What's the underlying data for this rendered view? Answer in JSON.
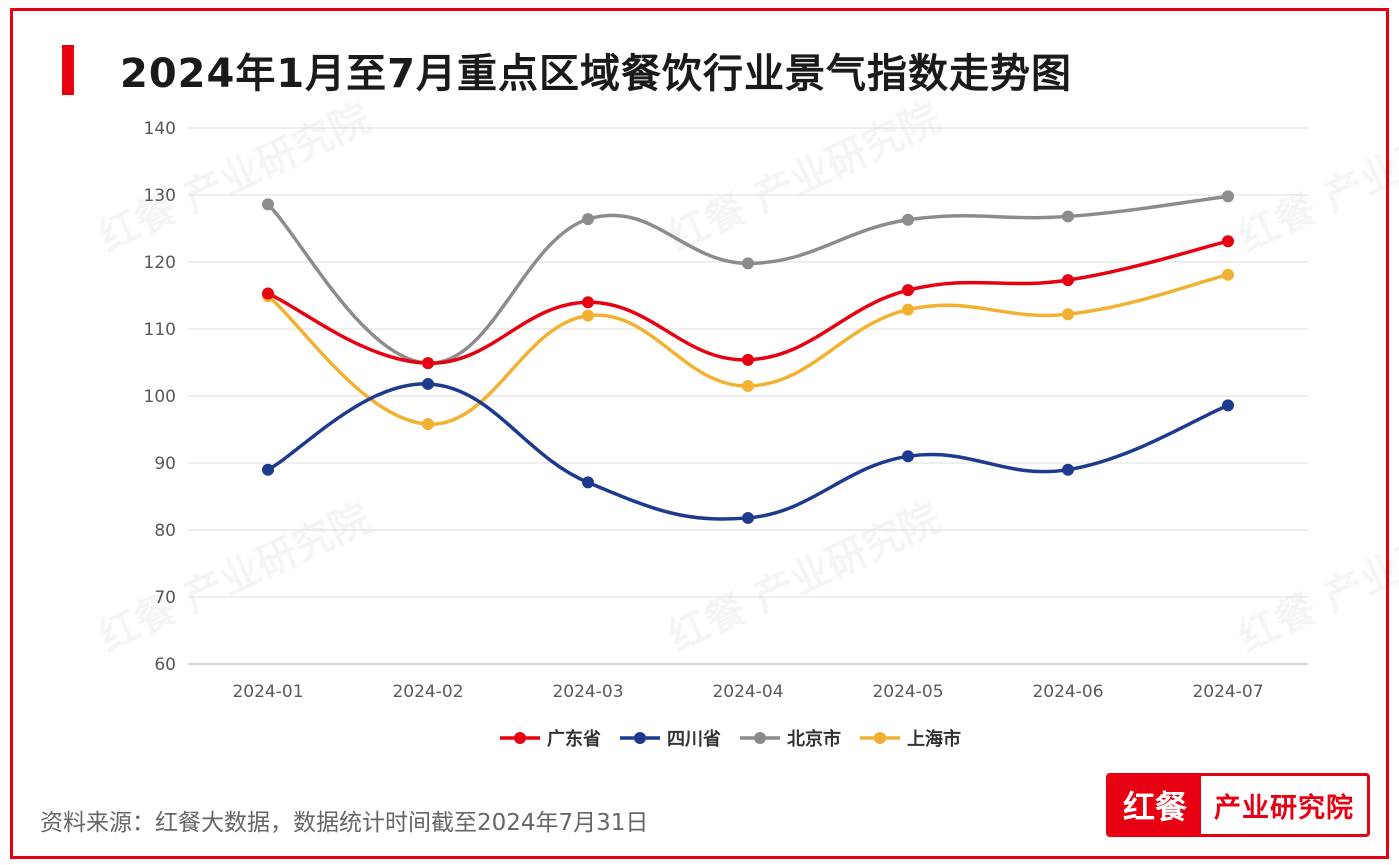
{
  "title": "2024年1月至7月重点区域餐饮行业景气指数走势图",
  "source_note": "资料来源：红餐大数据，数据统计时间截至2024年7月31日",
  "logo": {
    "left": "红餐",
    "right": "产业研究院"
  },
  "watermark": "红餐 产业研究院",
  "colors": {
    "accent": "#e60012"
  },
  "chart_data": {
    "type": "line",
    "categories": [
      "2024-01",
      "2024-02",
      "2024-03",
      "2024-04",
      "2024-05",
      "2024-06",
      "2024-07"
    ],
    "ylim": [
      60,
      140
    ],
    "yticks": [
      60,
      70,
      80,
      90,
      100,
      110,
      120,
      130,
      140
    ],
    "grid": true,
    "smooth": true,
    "legend_position": "bottom-center",
    "series": [
      {
        "name": "广东省",
        "color": "#e60012",
        "values": [
          115.3,
          104.9,
          114.0,
          105.4,
          115.8,
          117.3,
          123.1
        ]
      },
      {
        "name": "四川省",
        "color": "#1e3a8f",
        "values": [
          89.0,
          101.8,
          87.1,
          81.8,
          91.0,
          89.0,
          98.6
        ]
      },
      {
        "name": "北京市",
        "color": "#8c8c8c",
        "values": [
          128.6,
          104.9,
          126.4,
          119.8,
          126.3,
          126.8,
          129.8
        ]
      },
      {
        "name": "上海市",
        "color": "#f2b130",
        "values": [
          114.9,
          95.8,
          112.0,
          101.5,
          112.9,
          112.2,
          118.1
        ]
      }
    ]
  }
}
